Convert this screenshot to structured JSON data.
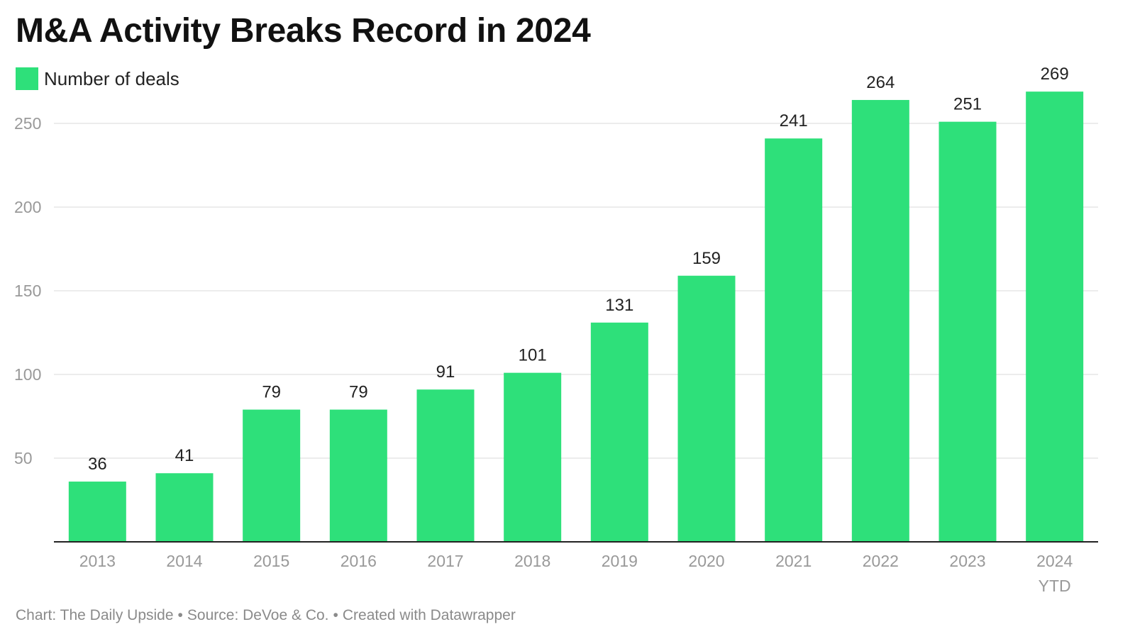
{
  "title": "M&A Activity Breaks Record in 2024",
  "legend": {
    "label": "Number of deals",
    "color": "#2ee07a"
  },
  "footer": {
    "credit": "Chart: The Daily Upside",
    "source": "Source: DeVoe & Co.",
    "tool": "Created with Datawrapper",
    "separator": "•"
  },
  "colors": {
    "bar": "#2ee07a",
    "grid": "#e6e6e6",
    "axis": "#222222",
    "tick_label": "#999999",
    "data_label": "#222222"
  },
  "chart_data": {
    "type": "bar",
    "title": "M&A Activity Breaks Record in 2024",
    "categories": [
      "2013",
      "2014",
      "2015",
      "2016",
      "2017",
      "2018",
      "2019",
      "2020",
      "2021",
      "2022",
      "2023",
      "2024 YTD"
    ],
    "category_lines": [
      [
        "2013"
      ],
      [
        "2014"
      ],
      [
        "2015"
      ],
      [
        "2016"
      ],
      [
        "2017"
      ],
      [
        "2018"
      ],
      [
        "2019"
      ],
      [
        "2020"
      ],
      [
        "2021"
      ],
      [
        "2022"
      ],
      [
        "2023"
      ],
      [
        "2024",
        "YTD"
      ]
    ],
    "series": [
      {
        "name": "Number of deals",
        "values": [
          36,
          41,
          79,
          79,
          91,
          101,
          131,
          159,
          241,
          264,
          251,
          269
        ]
      }
    ],
    "xlabel": "",
    "ylabel": "",
    "ylim": [
      0,
      269
    ],
    "yticks": [
      50,
      100,
      150,
      200,
      250
    ],
    "grid": true,
    "legend_position": "top-left",
    "data_labels": true
  }
}
